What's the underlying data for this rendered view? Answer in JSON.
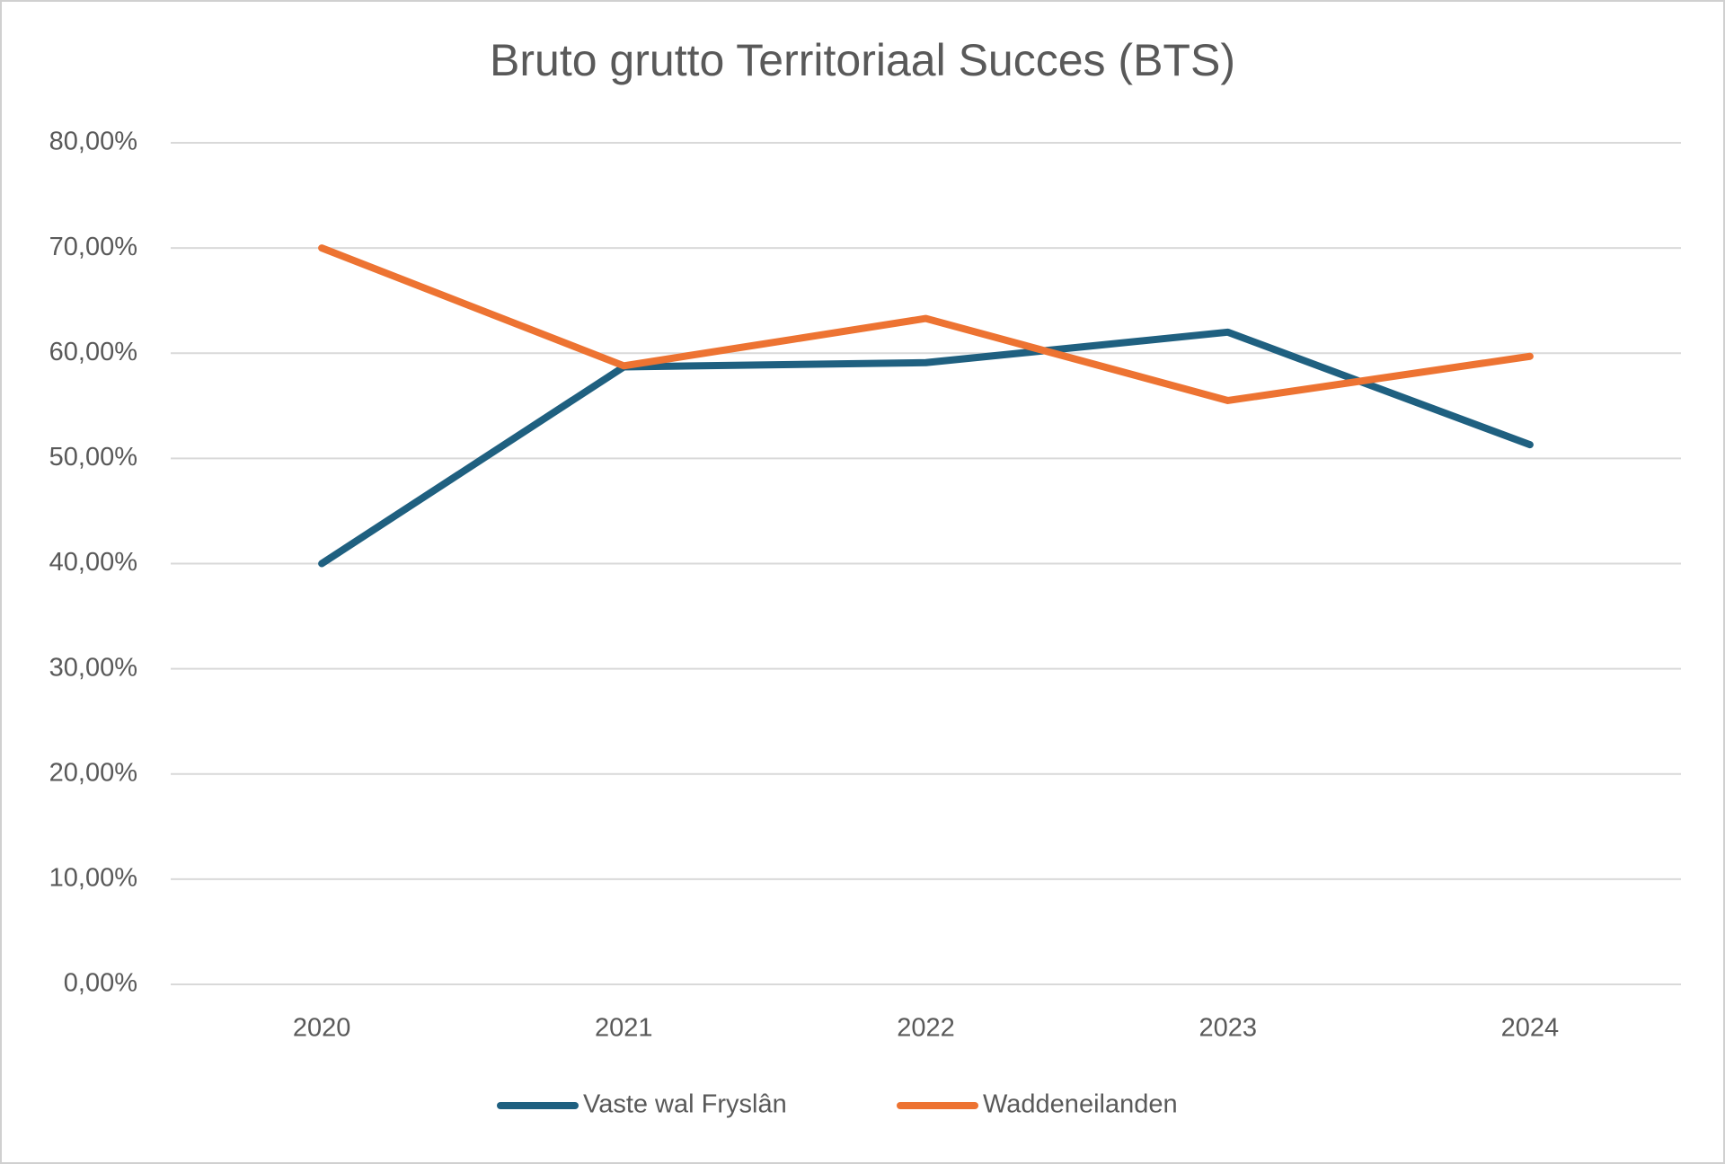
{
  "chart_data": {
    "type": "line",
    "title": "Bruto grutto Territoriaal Succes (BTS)",
    "categories": [
      "2020",
      "2021",
      "2022",
      "2023",
      "2024"
    ],
    "series": [
      {
        "name": "Vaste wal Fryslân",
        "color": "#1f6080",
        "values": [
          40,
          58.7,
          59.1,
          62.0,
          51.3
        ]
      },
      {
        "name": "Waddeneilanden",
        "color": "#ed7332",
        "values": [
          70.0,
          58.8,
          63.3,
          55.5,
          59.7
        ]
      }
    ],
    "ylim": [
      0,
      80
    ],
    "yticks": [
      {
        "value": 0,
        "label": "0,00%"
      },
      {
        "value": 10,
        "label": "10,00%"
      },
      {
        "value": 20,
        "label": "20,00%"
      },
      {
        "value": 30,
        "label": "30,00%"
      },
      {
        "value": 40,
        "label": "40,00%"
      },
      {
        "value": 50,
        "label": "50,00%"
      },
      {
        "value": 60,
        "label": "60,00%"
      },
      {
        "value": 70,
        "label": "70,00%"
      },
      {
        "value": 80,
        "label": "80,00%"
      }
    ],
    "grid": true,
    "legend": "bottom"
  }
}
